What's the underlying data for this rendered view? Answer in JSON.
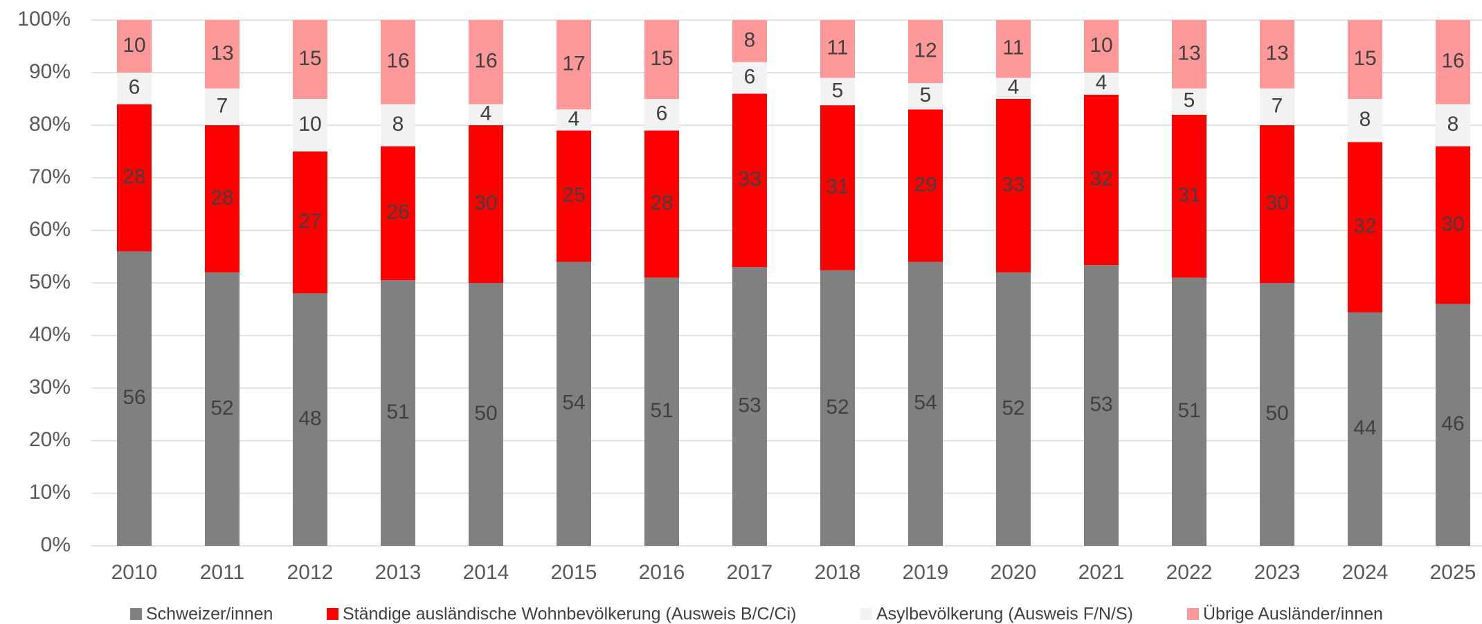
{
  "chart_data": {
    "type": "stacked_bar",
    "categories": [
      "2010",
      "2011",
      "2012",
      "2013",
      "2014",
      "2015",
      "2016",
      "2017",
      "2018",
      "2019",
      "2020",
      "2021",
      "2022",
      "2023",
      "2024",
      "2025"
    ],
    "series": [
      {
        "name": "Schweizer/innen",
        "color": "#808080",
        "values": [
          56,
          52,
          48,
          50.5,
          50,
          54,
          51,
          53,
          52.4,
          54,
          52,
          53.4,
          51,
          50,
          44.4,
          46
        ],
        "value_labels": [
          "56",
          "52",
          "48",
          "51",
          "50",
          "54",
          "51",
          "53",
          "52",
          "54",
          "52",
          "53",
          "51",
          "50",
          "44",
          "46"
        ]
      },
      {
        "name": "Ständige ausländische Wohnbevölkerung (Ausweis B/C/Ci)",
        "color": "#ff0000",
        "values": [
          28,
          28,
          27,
          25.5,
          30,
          25,
          28,
          33,
          31.4,
          29,
          33,
          32.4,
          31,
          30,
          32.4,
          30
        ],
        "value_labels": [
          "28",
          "28",
          "27",
          "26",
          "30",
          "25",
          "28",
          "33",
          "31",
          "29",
          "33",
          "32",
          "31",
          "30",
          "32",
          "30"
        ]
      },
      {
        "name": "Asylbevölkerung (Ausweis F/N/S)",
        "color": "#f2f2f2",
        "values": [
          6,
          7,
          10,
          8,
          4,
          4,
          6,
          6,
          5.2,
          5,
          4,
          4.2,
          5,
          7,
          8.2,
          8
        ],
        "value_labels": [
          "6",
          "7",
          "10",
          "8",
          "4",
          "4",
          "6",
          "6",
          "5",
          "5",
          "4",
          "4",
          "5",
          "7",
          "8",
          "8"
        ]
      },
      {
        "name": "Übrige Ausländer/innen",
        "color": "#ff9999",
        "values": [
          10,
          13,
          15,
          16,
          16,
          17,
          15,
          8,
          11,
          12,
          11,
          10,
          13,
          13,
          15,
          16
        ],
        "value_labels": [
          "10",
          "13",
          "15",
          "16",
          "16",
          "17",
          "15",
          "8",
          "11",
          "12",
          "11",
          "10",
          "13",
          "13",
          "15",
          "16"
        ]
      }
    ],
    "ylim": [
      0,
      100
    ],
    "yticks": [
      {
        "value": 0,
        "label": "0%"
      },
      {
        "value": 10,
        "label": "10%"
      },
      {
        "value": 20,
        "label": "20%"
      },
      {
        "value": 30,
        "label": "30%"
      },
      {
        "value": 40,
        "label": "40%"
      },
      {
        "value": 50,
        "label": "50%"
      },
      {
        "value": 60,
        "label": "60%"
      },
      {
        "value": 70,
        "label": "70%"
      },
      {
        "value": 80,
        "label": "80%"
      },
      {
        "value": 90,
        "label": "90%"
      },
      {
        "value": 100,
        "label": "100%"
      }
    ],
    "grid": true,
    "legend": "bottom"
  }
}
